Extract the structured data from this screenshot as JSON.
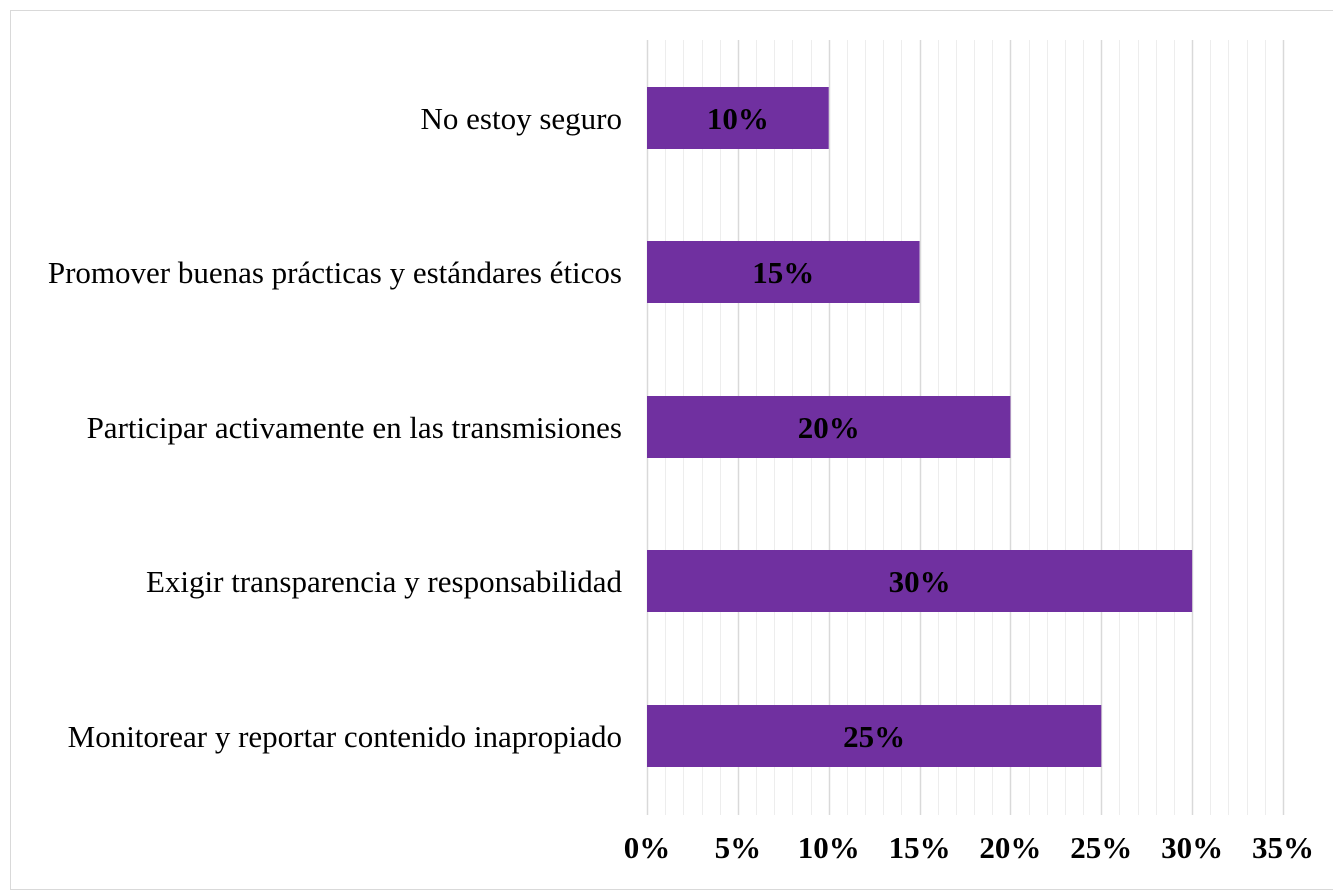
{
  "chart_data": {
    "type": "bar",
    "orientation": "horizontal",
    "title": "",
    "xlabel": "",
    "ylabel": "",
    "categories": [
      "No estoy seguro",
      "Promover buenas prácticas y estándares éticos",
      "Participar activamente en las transmisiones",
      "Exigir transparencia y responsabilidad",
      "Monitorear y reportar contenido inapropiado"
    ],
    "values": [
      10,
      15,
      20,
      30,
      25
    ],
    "data_labels": [
      "10%",
      "15%",
      "20%",
      "30%",
      "25%"
    ],
    "xlim": [
      0,
      35
    ],
    "x_ticks": [
      0,
      5,
      10,
      15,
      20,
      25,
      30,
      35
    ],
    "x_tick_labels": [
      "0%",
      "5%",
      "10%",
      "15%",
      "20%",
      "25%",
      "30%",
      "35%"
    ],
    "minor_grid_step": 1,
    "grid": true,
    "legend": "none",
    "colors": {
      "bar": "#7030A0",
      "major_grid": "#D9D9D9",
      "minor_grid": "#EDEDED",
      "text": "#000000"
    }
  }
}
